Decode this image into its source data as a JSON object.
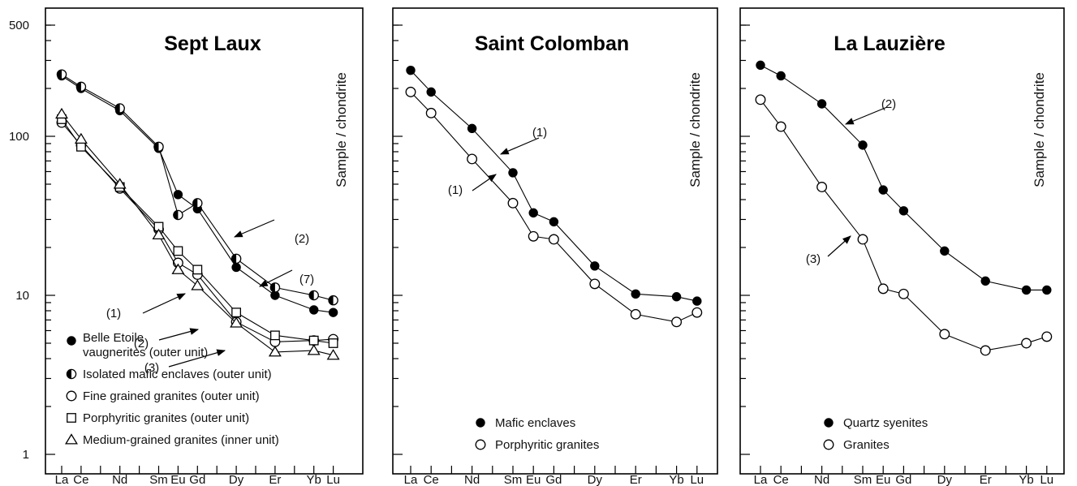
{
  "chart_data": [
    {
      "type": "line",
      "title": "Sept Laux",
      "ylabel": "Sample / chondrite",
      "yscale": "log",
      "ylim": [
        1,
        500
      ],
      "y_tick_labels": [
        "1",
        "10",
        "100",
        "500"
      ],
      "categories": [
        "La",
        "Ce",
        "Nd",
        "Sm",
        "Eu",
        "Gd",
        "Dy",
        "Er",
        "Yb",
        "Lu"
      ],
      "series": [
        {
          "name": "Belle Etoile vaugnerites (outer unit)",
          "marker": "filled-circle",
          "values": [
            240,
            200,
            145,
            84,
            43,
            35,
            15,
            10,
            8.1,
            7.8
          ]
        },
        {
          "name": "Isolated mafic enclaves (outer unit)",
          "marker": "half-filled-circle",
          "values": [
            245,
            205,
            150,
            86,
            32,
            38,
            17,
            11.2,
            10,
            9.3
          ]
        },
        {
          "name": "Fine grained granites (outer unit)",
          "marker": "open-circle",
          "values": [
            122,
            88,
            47,
            26,
            16,
            13.5,
            6.8,
            5.1,
            5.2,
            5.3
          ]
        },
        {
          "name": "Porphyritic granites (outer unit)",
          "marker": "open-square",
          "values": [
            128,
            86,
            48,
            27,
            19,
            14.5,
            7.8,
            5.6,
            5.2,
            5.0
          ]
        },
        {
          "name": "Medium-grained granites (inner unit)",
          "marker": "open-triangle",
          "values": [
            138,
            96,
            50,
            24,
            14.5,
            11.5,
            6.7,
            4.4,
            4.5,
            4.2
          ]
        }
      ],
      "legend": [
        {
          "marker": "filled-circle",
          "lines": [
            "Belle Etoile",
            "vaugnerites (outer unit)"
          ]
        },
        {
          "marker": "half-filled-circle",
          "lines": [
            "Isolated mafic enclaves (outer unit)"
          ]
        },
        {
          "marker": "open-circle",
          "lines": [
            "Fine grained granites (outer unit)"
          ]
        },
        {
          "marker": "open-square",
          "lines": [
            "Porphyritic granites (outer unit)"
          ]
        },
        {
          "marker": "open-triangle",
          "lines": [
            "Medium-grained granites (inner unit)"
          ]
        }
      ],
      "annotations": [
        "(2)",
        "(7)",
        "(1)",
        "(2)",
        "(3)"
      ],
      "legend_position": "bottom-left"
    },
    {
      "type": "line",
      "title": "Saint Colomban",
      "ylabel": "Sample / chondrite",
      "yscale": "log",
      "ylim": [
        1,
        500
      ],
      "categories": [
        "La",
        "Ce",
        "Nd",
        "Sm",
        "Eu",
        "Gd",
        "Dy",
        "Er",
        "Yb",
        "Lu"
      ],
      "series": [
        {
          "name": "Mafic enclaves",
          "marker": "filled-circle",
          "values": [
            260,
            190,
            112,
            59,
            33,
            29,
            15.3,
            10.2,
            9.8,
            9.2
          ]
        },
        {
          "name": "Porphyritic granites",
          "marker": "open-circle",
          "values": [
            190,
            140,
            72,
            38,
            23.5,
            22.5,
            11.8,
            7.6,
            6.8,
            7.8
          ]
        }
      ],
      "legend": [
        {
          "marker": "filled-circle",
          "lines": [
            "Mafic enclaves"
          ]
        },
        {
          "marker": "open-circle",
          "lines": [
            "Porphyritic granites"
          ]
        }
      ],
      "annotations": [
        "(1)",
        "(1)"
      ],
      "legend_position": "bottom-center"
    },
    {
      "type": "line",
      "title": "La Lauzière",
      "ylabel": "Sample / chondrite",
      "yscale": "log",
      "ylim": [
        1,
        500
      ],
      "categories": [
        "La",
        "Ce",
        "Nd",
        "Sm",
        "Eu",
        "Gd",
        "Dy",
        "Er",
        "Yb",
        "Lu"
      ],
      "series": [
        {
          "name": "Quartz syenites",
          "marker": "filled-circle",
          "values": [
            280,
            240,
            160,
            88,
            46,
            34,
            19,
            12.3,
            10.8,
            10.8
          ]
        },
        {
          "name": "Granites",
          "marker": "open-circle",
          "values": [
            170,
            115,
            48,
            22.5,
            11,
            10.2,
            5.7,
            4.5,
            5.0,
            5.5
          ]
        }
      ],
      "legend": [
        {
          "marker": "filled-circle",
          "lines": [
            "Quartz syenites"
          ]
        },
        {
          "marker": "open-circle",
          "lines": [
            "Granites"
          ]
        }
      ],
      "annotations": [
        "(2)",
        "(3)"
      ],
      "legend_position": "bottom-center"
    }
  ]
}
